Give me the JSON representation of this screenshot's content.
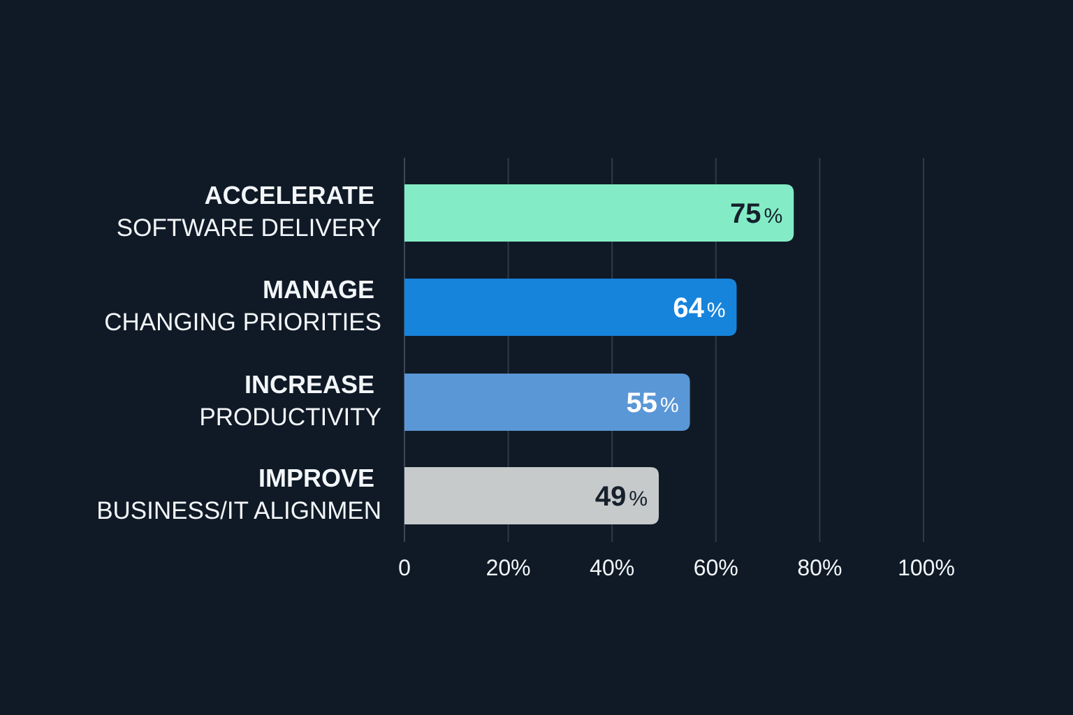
{
  "chart_data": {
    "type": "bar",
    "orientation": "horizontal",
    "categories": [
      {
        "line1": "ACCELERATE",
        "line2": "SOFTWARE DELIVERY"
      },
      {
        "line1": "MANAGE",
        "line2": "CHANGING PRIORITIES"
      },
      {
        "line1": "INCREASE",
        "line2": "PRODUCTIVITY"
      },
      {
        "line1": "IMPROVE",
        "line2": "BUSINESS/IT ALIGNMEN"
      }
    ],
    "values": [
      75,
      64,
      55,
      49
    ],
    "value_labels": [
      {
        "number": "75",
        "unit": "%"
      },
      {
        "number": "64",
        "unit": "%"
      },
      {
        "number": "55",
        "unit": "%"
      },
      {
        "number": "49",
        "unit": "%"
      }
    ],
    "bar_colors": [
      "#83ecc6",
      "#1784dc",
      "#5a97d6",
      "#c6cacb"
    ],
    "label_colors": [
      "#16202b",
      "#ffffff",
      "#ffffff",
      "#16202b"
    ],
    "xlim": [
      0,
      100
    ],
    "xticks": [
      0,
      20,
      40,
      60,
      80,
      100
    ],
    "xtick_labels": [
      "0",
      "20%",
      "40%",
      "60%",
      "80%",
      "100%"
    ],
    "grid": true,
    "title": "",
    "xlabel": "",
    "ylabel": ""
  }
}
